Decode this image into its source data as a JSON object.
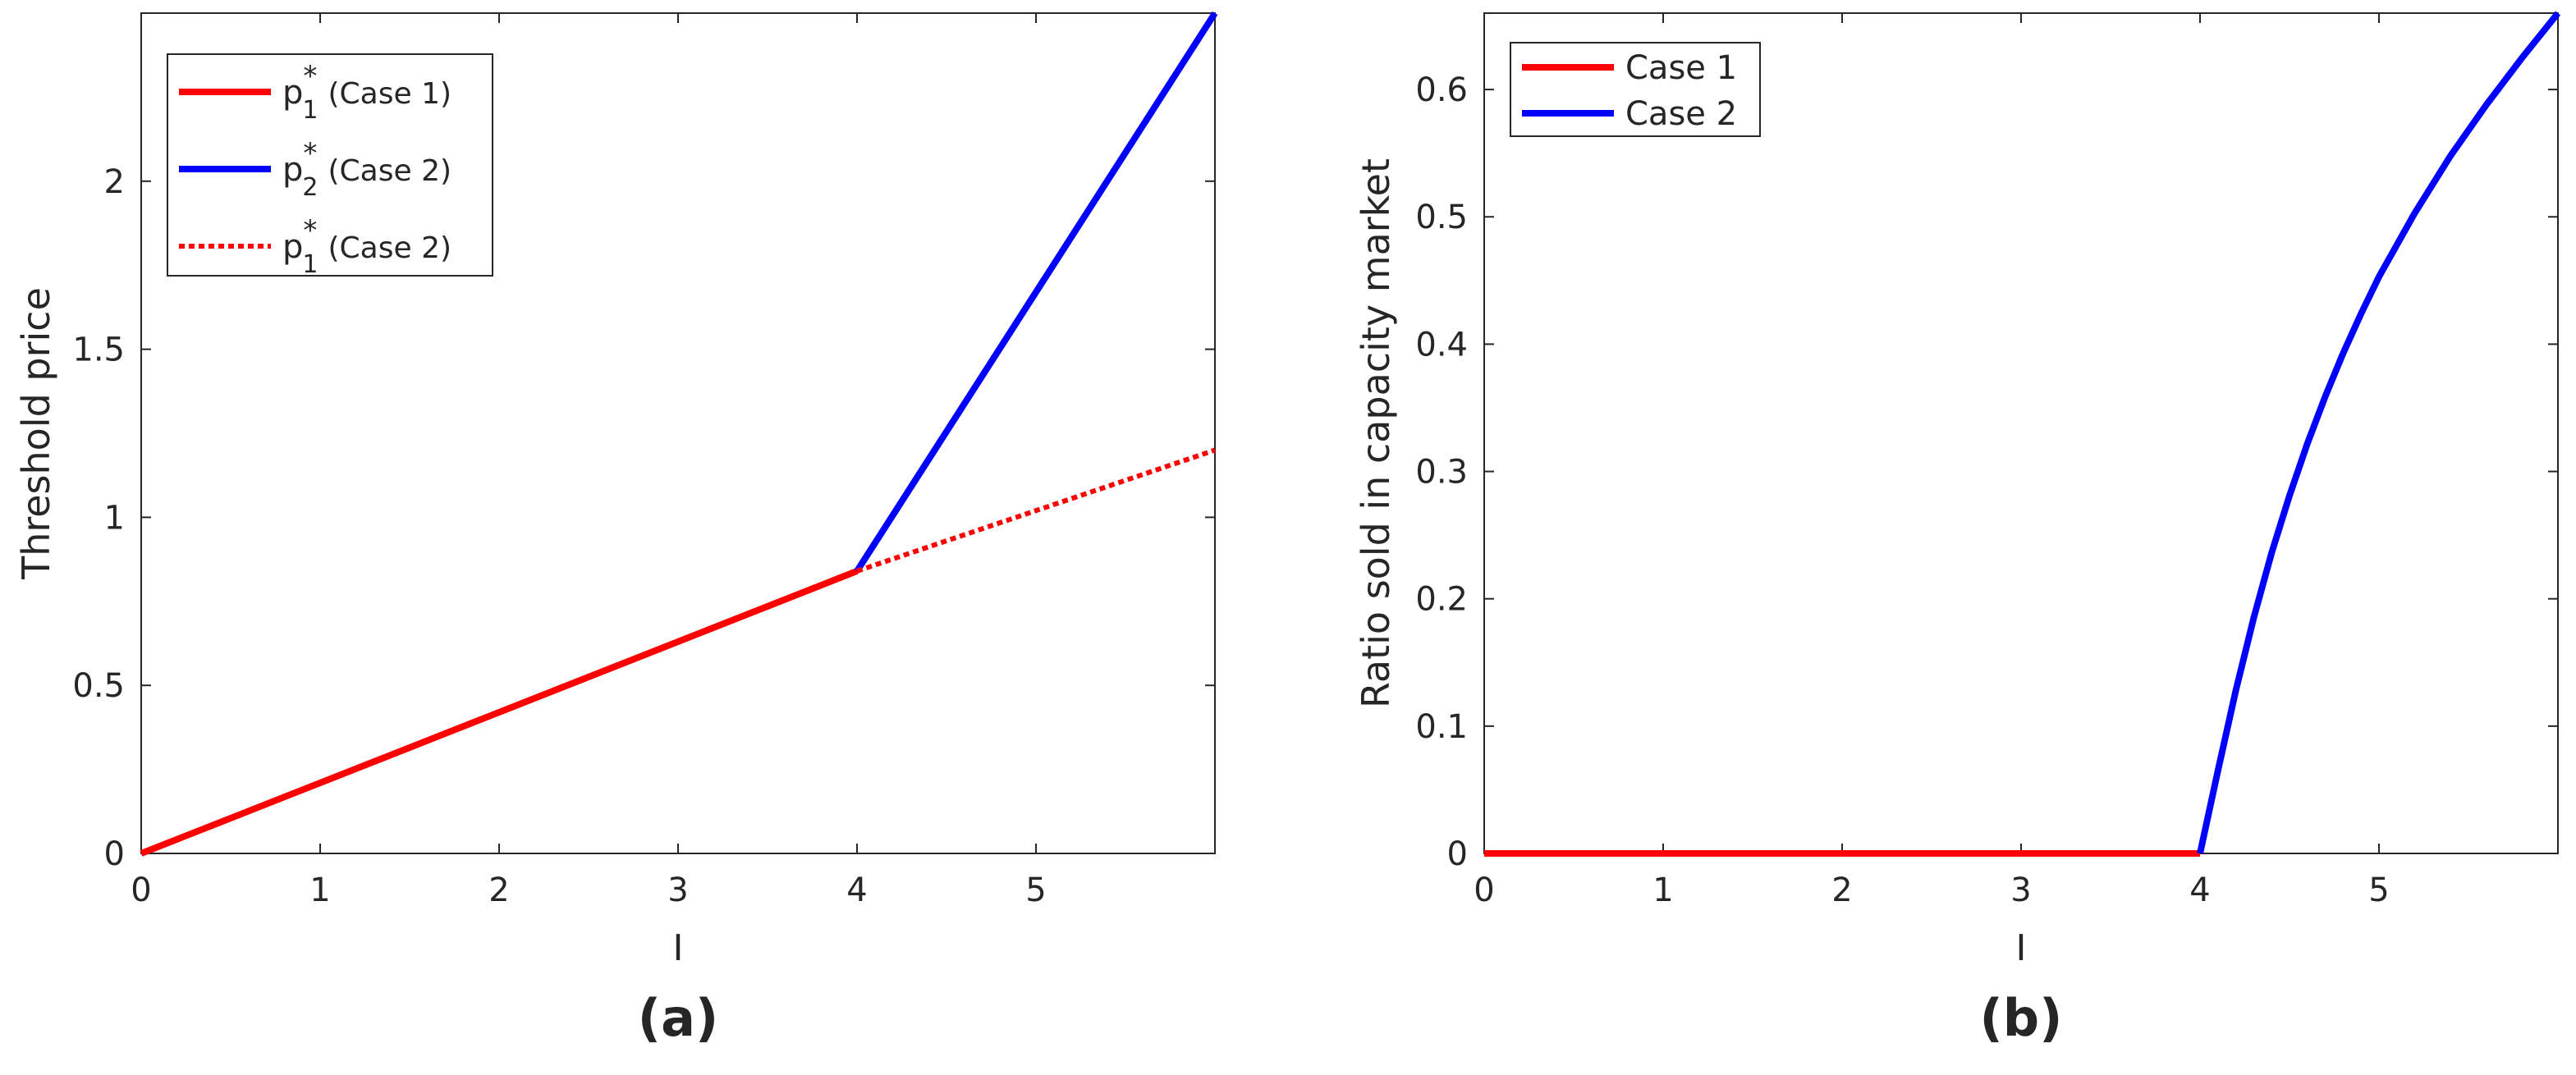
{
  "chart_data": [
    {
      "type": "line",
      "panel_label": "(a)",
      "xlabel": "I",
      "ylabel": "Threshold price",
      "xlim": [
        0,
        6
      ],
      "ylim": [
        0,
        2.5
      ],
      "xticks": [
        "0",
        "1",
        "2",
        "3",
        "4",
        "5"
      ],
      "yticks": [
        "0",
        "0.5",
        "1",
        "1.5",
        "2"
      ],
      "legend_position": "top-left",
      "series": [
        {
          "name": "p₁* (Case 1)",
          "legend_base": "p",
          "legend_sub": "1",
          "legend_sup": "*",
          "legend_rest": "(Case 1)",
          "color": "#ff0000",
          "style": "solid",
          "x": [
            0,
            4
          ],
          "y": [
            0,
            0.84
          ]
        },
        {
          "name": "p₂* (Case 2)",
          "legend_base": "p",
          "legend_sub": "2",
          "legend_sup": "*",
          "legend_rest": "(Case 2)",
          "color": "#0000ff",
          "style": "solid",
          "x": [
            4,
            6
          ],
          "y": [
            0.84,
            2.5
          ]
        },
        {
          "name": "p₁* (Case 2)",
          "legend_base": "p",
          "legend_sub": "1",
          "legend_sup": "*",
          "legend_rest": "(Case 2)",
          "color": "#ff0000",
          "style": "dotted",
          "x": [
            4,
            6
          ],
          "y": [
            0.84,
            1.2
          ]
        }
      ]
    },
    {
      "type": "line",
      "panel_label": "(b)",
      "xlabel": "I",
      "ylabel": "Ratio sold in capacity market",
      "xlim": [
        0,
        6
      ],
      "ylim": [
        0,
        0.66
      ],
      "xticks": [
        "0",
        "1",
        "2",
        "3",
        "4",
        "5"
      ],
      "yticks": [
        "0",
        "0.1",
        "0.2",
        "0.3",
        "0.4",
        "0.5",
        "0.6"
      ],
      "legend_position": "top-left",
      "series": [
        {
          "name": "Case 1",
          "color": "#ff0000",
          "style": "solid",
          "x": [
            0,
            4
          ],
          "y": [
            0,
            0
          ]
        },
        {
          "name": "Case 2",
          "color": "#0000ff",
          "style": "solid",
          "x": [
            4,
            4.1,
            4.2,
            4.3,
            4.4,
            4.5,
            4.6,
            4.7,
            4.8,
            4.9,
            5.0,
            5.2,
            5.4,
            5.6,
            5.8,
            6.0
          ],
          "y": [
            0,
            0.065,
            0.128,
            0.185,
            0.236,
            0.281,
            0.322,
            0.359,
            0.393,
            0.424,
            0.453,
            0.503,
            0.548,
            0.588,
            0.625,
            0.66
          ]
        }
      ]
    }
  ]
}
